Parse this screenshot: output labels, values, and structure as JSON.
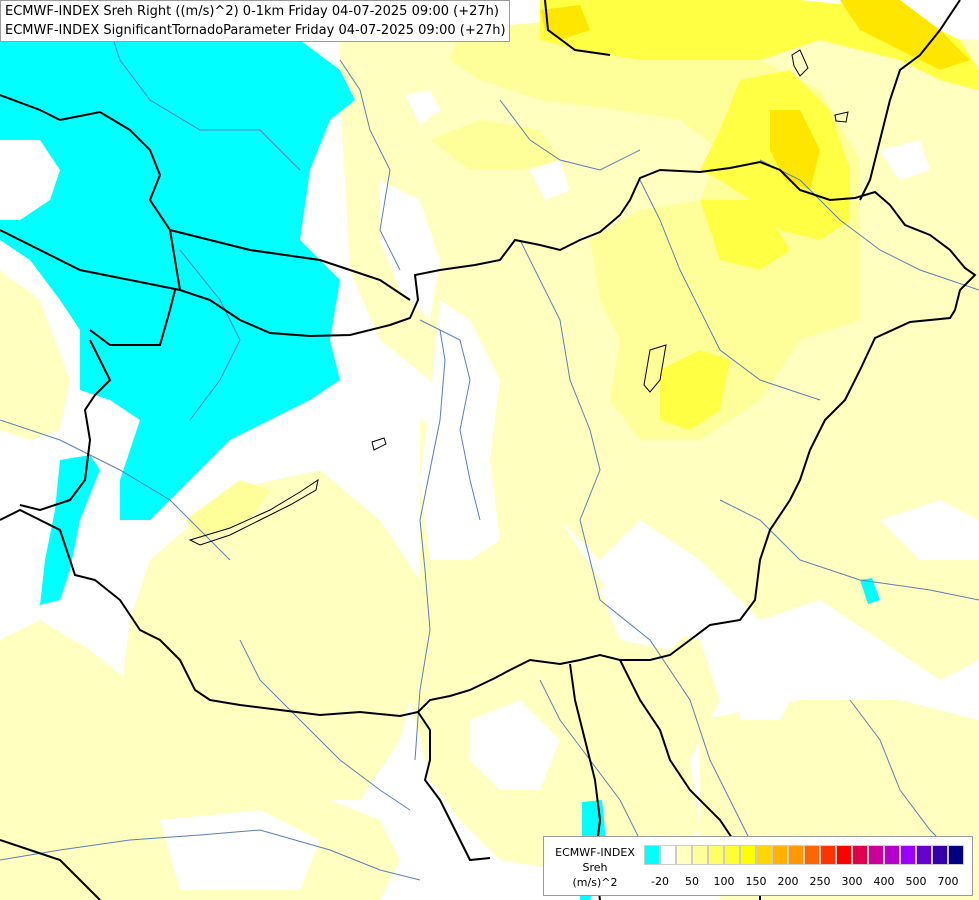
{
  "title": {
    "line1": "ECMWF-INDEX Sreh Right ((m/s)^2) 0-1km Friday 04-07-2025 09:00 (+27h)",
    "line2": "ECMWF-INDEX SignificantTornadoParameter Friday 04-07-2025 09:00 (+27h)"
  },
  "legend": {
    "source": "ECMWF-INDEX",
    "variable": "Sreh",
    "unit": "(m/s)^2",
    "colors": [
      "#00ffff",
      "#ffffff",
      "#ffffc0",
      "#ffff99",
      "#ffff66",
      "#ffff33",
      "#ffff00",
      "#ffd700",
      "#ffb300",
      "#ff9900",
      "#ff6600",
      "#ff3300",
      "#ff0000",
      "#e0004e",
      "#cc0099",
      "#b800cc",
      "#9900ff",
      "#6600cc",
      "#3300aa",
      "#000080"
    ],
    "tick_labels": [
      "-20",
      "50",
      "100",
      "150",
      "200",
      "250",
      "300",
      "400",
      "500",
      "700"
    ]
  },
  "colors": {
    "cyan_area": "#00ffff",
    "pale_yellow": "#ffffc0",
    "light_yellow": "#ffff99",
    "yellow": "#ffff33",
    "bright_yellow": "#ffee00",
    "border": "#000000",
    "river": "#5a7fb8"
  }
}
